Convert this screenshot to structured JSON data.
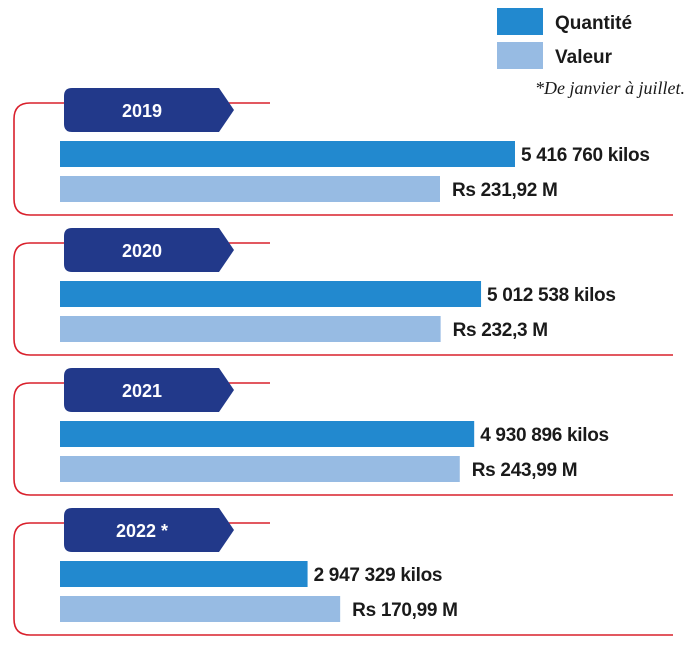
{
  "colors": {
    "quantite": "#2289cf",
    "valeur": "#97bbe3",
    "tab": "#22398a",
    "bracket": "#d9202c"
  },
  "legend": {
    "quantite_label": "Quantité",
    "valeur_label": "Valeur",
    "note": "*De janvier à juillet."
  },
  "chart_data": {
    "type": "bar",
    "orientation": "horizontal",
    "categories": [
      "2019",
      "2020",
      "2021",
      "2022 *"
    ],
    "series": [
      {
        "name": "Quantité",
        "values": [
          5416760,
          5012538,
          4930896,
          2947329
        ],
        "labels": [
          "5 416 760 kilos",
          "5 012 538 kilos",
          "4 930 896 kilos",
          "2 947 329 kilos"
        ]
      },
      {
        "name": "Valeur",
        "values": [
          231.92,
          232.3,
          243.99,
          170.99
        ],
        "labels": [
          "Rs 231,92 M",
          "Rs 232,3 M",
          "Rs 243,99 M",
          "Rs 170,99 M"
        ]
      }
    ],
    "grid": false,
    "legend_position": "top-right"
  }
}
